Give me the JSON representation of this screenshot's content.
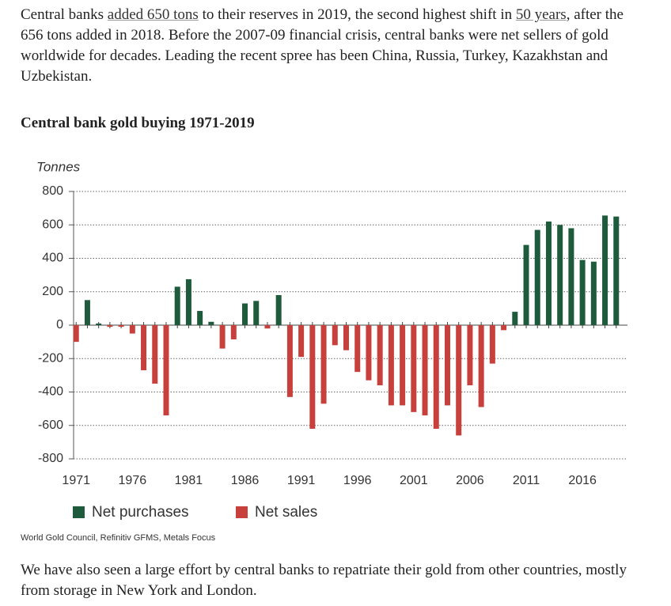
{
  "intro": [
    "Central banks ",
    "added 650 tons",
    " to their reserves in 2019, the second highest shift in ",
    "50 years",
    ", after the 656 tons added in 2018. Before the 2007-09 financial crisis, central banks were net sellers of gold worldwide for decades. Leading the recent spree has been China, Russia, Turkey, Kazakhstan and Uzbekistan."
  ],
  "chart_data": {
    "type": "bar",
    "title": "Central bank gold buying 1971-2019",
    "y_label": "Tonnes",
    "x": [
      1971,
      1972,
      1973,
      1974,
      1975,
      1976,
      1977,
      1978,
      1979,
      1980,
      1981,
      1982,
      1983,
      1984,
      1985,
      1986,
      1987,
      1988,
      1989,
      1990,
      1991,
      1992,
      1993,
      1994,
      1995,
      1996,
      1997,
      1998,
      1999,
      2000,
      2001,
      2002,
      2003,
      2004,
      2005,
      2006,
      2007,
      2008,
      2009,
      2010,
      2011,
      2012,
      2013,
      2014,
      2015,
      2016,
      2017,
      2018,
      2019
    ],
    "series": [
      {
        "name": "Net purchases",
        "color": "#1e5a3c",
        "values": [
          null,
          150,
          10,
          null,
          null,
          null,
          null,
          null,
          null,
          230,
          275,
          85,
          20,
          null,
          null,
          130,
          145,
          null,
          180,
          null,
          null,
          null,
          null,
          null,
          null,
          null,
          null,
          null,
          null,
          null,
          null,
          null,
          null,
          null,
          null,
          null,
          null,
          null,
          null,
          80,
          480,
          570,
          620,
          600,
          580,
          390,
          380,
          656,
          650
        ]
      },
      {
        "name": "Net sales",
        "color": "#c8403c",
        "values": [
          -100,
          null,
          null,
          -10,
          -10,
          -50,
          -270,
          -350,
          -540,
          null,
          null,
          null,
          null,
          -140,
          -85,
          null,
          null,
          -20,
          null,
          -430,
          -190,
          -620,
          -470,
          -120,
          -150,
          -280,
          -330,
          -360,
          -480,
          -480,
          -520,
          -540,
          -620,
          -480,
          -660,
          -360,
          -490,
          -230,
          -30,
          null,
          null,
          null,
          null,
          null,
          null,
          null,
          null,
          null,
          null
        ]
      }
    ],
    "xlim": [
      1970,
      2020
    ],
    "xticks": [
      1971,
      1976,
      1981,
      1986,
      1991,
      1996,
      2001,
      2006,
      2011,
      2016
    ],
    "ylim": [
      -800,
      800
    ],
    "yticks": [
      800,
      600,
      400,
      200,
      0,
      -200,
      -400,
      -600,
      -800
    ],
    "grid": true,
    "source": "World Gold Council, Refinitiv GFMS, Metals Focus"
  },
  "outro": "We have also seen a large effort by central banks to repatriate their gold from other countries, mostly from storage in New York and London."
}
